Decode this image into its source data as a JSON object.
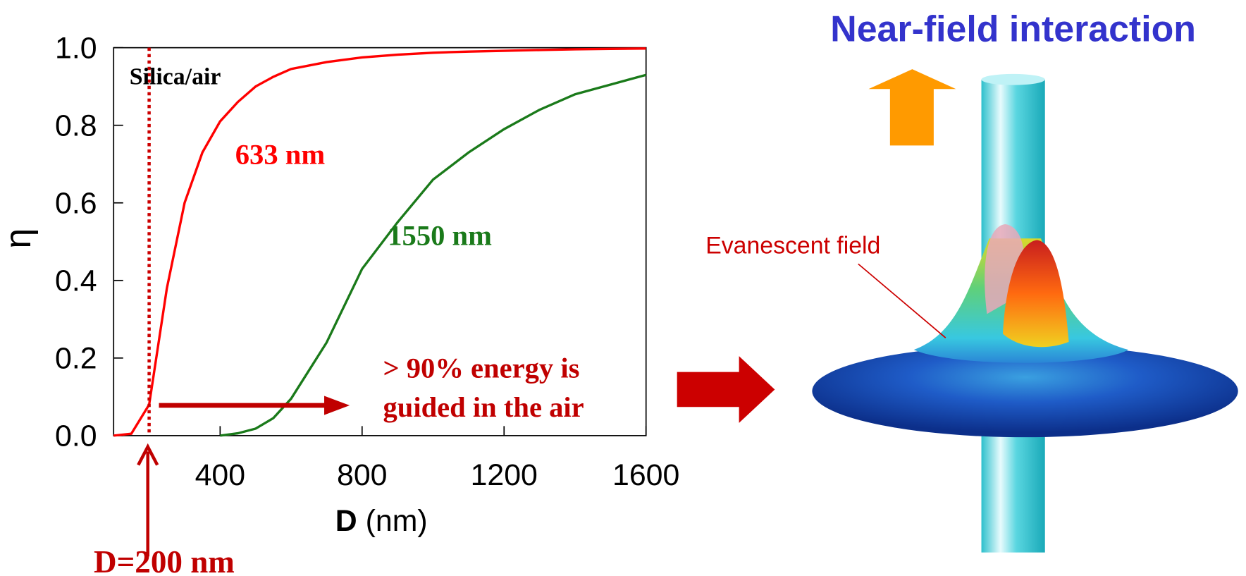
{
  "chart_data": {
    "type": "line",
    "title": "Near-field interaction",
    "x_label": "D",
    "x_label_unit": "(nm)",
    "y_label": "η",
    "x": [
      100,
      150,
      200,
      250,
      300,
      350,
      400,
      450,
      500,
      550,
      600,
      700,
      800,
      900,
      1000,
      1100,
      1200,
      1300,
      1400,
      1500,
      1600
    ],
    "series": [
      {
        "name": "633 nm",
        "color": "#ff0000",
        "values": [
          0,
          0.005,
          0.08,
          0.38,
          0.6,
          0.73,
          0.81,
          0.86,
          0.9,
          0.925,
          0.945,
          0.963,
          0.975,
          0.982,
          0.987,
          0.99,
          0.992,
          0.994,
          0.996,
          0.997,
          0.998
        ]
      },
      {
        "name": "1550 nm",
        "color": "#1a7a1a",
        "values": [
          null,
          null,
          null,
          null,
          null,
          null,
          0,
          0.006,
          0.018,
          0.045,
          0.095,
          0.24,
          0.43,
          0.55,
          0.66,
          0.73,
          0.79,
          0.84,
          0.88,
          0.905,
          0.93
        ]
      }
    ],
    "xlim": [
      100,
      1600
    ],
    "xticks": [
      400,
      800,
      1200,
      1600
    ],
    "ylim": [
      0,
      1
    ],
    "yticks": [
      {
        "value": 0,
        "label": "0.0"
      },
      0.2,
      0.4,
      0.6,
      0.8,
      {
        "value": 1,
        "label": "1.0"
      }
    ],
    "vline": 200,
    "annotations": {
      "medium": "Silica/air",
      "energy_line1": "> 90% energy is",
      "energy_line2": "guided in the air",
      "diameter": "D=200 nm",
      "field": "Evanescent field"
    }
  }
}
